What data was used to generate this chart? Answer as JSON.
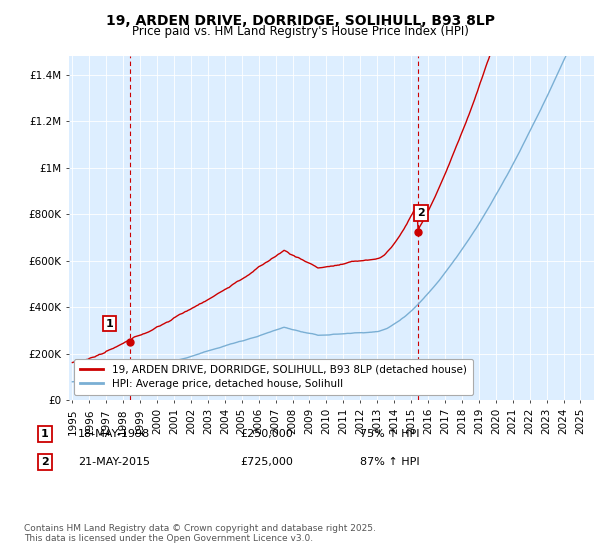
{
  "title": "19, ARDEN DRIVE, DORRIDGE, SOLIHULL, B93 8LP",
  "subtitle": "Price paid vs. HM Land Registry's House Price Index (HPI)",
  "ylabel_ticks": [
    "£0",
    "£200K",
    "£400K",
    "£600K",
    "£800K",
    "£1M",
    "£1.2M",
    "£1.4M"
  ],
  "ytick_values": [
    0,
    200000,
    400000,
    600000,
    800000,
    1000000,
    1200000,
    1400000
  ],
  "ylim": [
    0,
    1480000
  ],
  "xlim_start": 1994.8,
  "xlim_end": 2025.8,
  "sale1_x": 1998.38,
  "sale1_y": 250000,
  "sale1_label": "1",
  "sale1_date": "18-MAY-1998",
  "sale1_price": "£250,000",
  "sale1_hpi": "75% ↑ HPI",
  "sale2_x": 2015.38,
  "sale2_y": 725000,
  "sale2_label": "2",
  "sale2_date": "21-MAY-2015",
  "sale2_price": "£725,000",
  "sale2_hpi": "87% ↑ HPI",
  "line1_color": "#cc0000",
  "line2_color": "#7aafd4",
  "vline_color": "#cc0000",
  "legend1": "19, ARDEN DRIVE, DORRIDGE, SOLIHULL, B93 8LP (detached house)",
  "legend2": "HPI: Average price, detached house, Solihull",
  "footnote": "Contains HM Land Registry data © Crown copyright and database right 2025.\nThis data is licensed under the Open Government Licence v3.0.",
  "background_color": "#ffffff",
  "plot_bg_color": "#ddeeff",
  "grid_color": "#ffffff",
  "title_fontsize": 10,
  "subtitle_fontsize": 8.5,
  "tick_fontsize": 7.5,
  "legend_fontsize": 7.5
}
